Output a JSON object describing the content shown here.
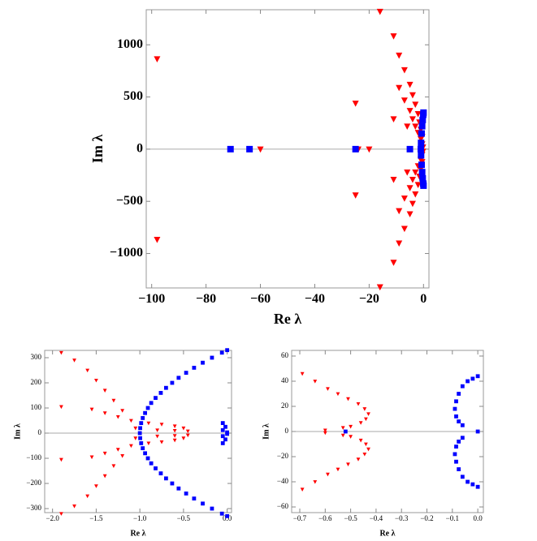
{
  "chart_data": [
    {
      "type": "scatter",
      "x_label": "Re λ",
      "y_label": "Im λ",
      "zero_line": true,
      "xlim": [
        -102,
        2
      ],
      "ylim": [
        -1330,
        1336
      ],
      "xticks": [
        {
          "value": -100,
          "label": "−100"
        },
        {
          "value": -80,
          "label": "−80"
        },
        {
          "value": -60,
          "label": "−60"
        },
        {
          "value": -40,
          "label": "−40"
        },
        {
          "value": -20,
          "label": "−20"
        },
        0
      ],
      "yticks": [
        1000,
        500,
        0,
        {
          "value": -500,
          "label": "−500"
        },
        {
          "value": -1000,
          "label": "−1000"
        }
      ],
      "series": [
        {
          "color": "#ff0000",
          "marker": "triangle-down",
          "x": [
            -98,
            -98,
            -60,
            -25,
            -25,
            -24,
            -20,
            -16,
            -16,
            -11,
            -11,
            -11,
            -11,
            -9,
            -9,
            -9,
            -9,
            -7,
            -7,
            -7,
            -7,
            -6,
            -6,
            -5,
            -5,
            -5,
            -5,
            -4,
            -4,
            -4,
            -4,
            -3,
            -3,
            -3,
            -3,
            -2,
            -2,
            -2,
            -2,
            -1.5,
            -1.5,
            -1,
            -1,
            -1,
            -1,
            -0.5,
            -0.5,
            -0.5,
            -0.5,
            -0.2,
            -0.2
          ],
          "values": [
            865,
            -865,
            0,
            440,
            -440,
            0,
            0,
            1320,
            -1320,
            1085,
            -1085,
            290,
            -290,
            900,
            -900,
            590,
            -590,
            760,
            -760,
            470,
            -470,
            220,
            -220,
            620,
            -620,
            370,
            -370,
            520,
            -520,
            290,
            -290,
            430,
            -430,
            220,
            -220,
            340,
            -340,
            160,
            -160,
            260,
            -260,
            190,
            -190,
            100,
            -100,
            120,
            -120,
            50,
            -50,
            20,
            -20
          ]
        },
        {
          "color": "#0000ff",
          "marker": "square",
          "x": [
            -71,
            -64,
            -25,
            -5,
            -1,
            -0.9,
            -0.9,
            -0.7,
            -0.7,
            -0.5,
            -0.5,
            -0.3,
            -0.3,
            -0.1,
            -0.1,
            0,
            0
          ],
          "values": [
            0,
            0,
            0,
            0,
            0,
            60,
            -60,
            150,
            -150,
            220,
            -220,
            280,
            -280,
            330,
            -330,
            350,
            -350
          ]
        }
      ]
    },
    {
      "type": "scatter",
      "x_label": "Re λ",
      "y_label": "Im λ",
      "zero_line": true,
      "xlim": [
        -2.09,
        0.05
      ],
      "ylim": [
        -316,
        329
      ],
      "xticks": [
        {
          "value": -2,
          "label": "−2.0"
        },
        {
          "value": -1.5,
          "label": "−1.5"
        },
        {
          "value": -1,
          "label": "−1.0"
        },
        {
          "value": -0.5,
          "label": "−0.5"
        },
        {
          "value": 0,
          "label": "0.0"
        }
      ],
      "yticks": [
        300,
        200,
        100,
        0,
        {
          "value": -100,
          "label": "−100"
        },
        {
          "value": -200,
          "label": "−200"
        },
        {
          "value": -300,
          "label": "−300"
        }
      ],
      "series": [
        {
          "color": "#ff0000",
          "marker": "triangle-down",
          "x": [
            -1.9,
            -1.9,
            -1.75,
            -1.75,
            -1.6,
            -1.6,
            -1.5,
            -1.5,
            -1.4,
            -1.4,
            -1.3,
            -1.3,
            -1.2,
            -1.2,
            -1.1,
            -1.1,
            -1.05,
            -1.05,
            -1.9,
            -1.9,
            -1.55,
            -1.55,
            -1.4,
            -1.4,
            -1.25,
            -1.25,
            -0.9,
            -0.9,
            -0.75,
            -0.75,
            -0.6,
            -0.6,
            -0.5,
            -0.5,
            -0.45,
            -0.45,
            -0.6,
            -0.6,
            -0.8,
            -0.8
          ],
          "values": [
            320,
            -320,
            290,
            -290,
            250,
            -250,
            210,
            -210,
            170,
            -170,
            130,
            -130,
            90,
            -90,
            50,
            -50,
            20,
            -20,
            105,
            -105,
            95,
            -95,
            80,
            -80,
            65,
            -65,
            40,
            -40,
            35,
            -35,
            28,
            -28,
            20,
            -20,
            8,
            -8,
            10,
            -10,
            12,
            -12
          ]
        },
        {
          "color": "#0000ff",
          "marker": "square",
          "x": [
            -1,
            -0.996,
            -0.996,
            -0.985,
            -0.985,
            -0.967,
            -0.967,
            -0.94,
            -0.94,
            -0.908,
            -0.908,
            -0.87,
            -0.87,
            -0.82,
            -0.82,
            -0.76,
            -0.76,
            -0.7,
            -0.7,
            -0.63,
            -0.63,
            -0.556,
            -0.556,
            -0.47,
            -0.47,
            -0.379,
            -0.379,
            -0.28,
            -0.28,
            -0.174,
            -0.174,
            -0.06,
            -0.06,
            0,
            0,
            -0.05,
            -0.05,
            -0.02,
            -0.02,
            -0.05,
            -0.05,
            0,
            0
          ],
          "values": [
            0,
            20,
            -20,
            40,
            -40,
            60,
            -60,
            80,
            -80,
            100,
            -100,
            120,
            -120,
            140,
            -140,
            160,
            -160,
            180,
            -180,
            200,
            -200,
            220,
            -220,
            240,
            -240,
            260,
            -260,
            280,
            -280,
            300,
            -300,
            320,
            -320,
            330,
            -330,
            40,
            -40,
            25,
            -25,
            12,
            -12,
            3,
            -3
          ]
        }
      ]
    },
    {
      "type": "scatter",
      "x_label": "Re λ",
      "y_label": "Im λ",
      "zero_line": true,
      "xlim": [
        -0.732,
        0.022
      ],
      "ylim": [
        -64.5,
        64.5
      ],
      "xticks": [
        {
          "value": -0.7,
          "label": "−0.7"
        },
        {
          "value": -0.6,
          "label": "−0.6"
        },
        {
          "value": -0.5,
          "label": "−0.5"
        },
        {
          "value": -0.4,
          "label": "−0.4"
        },
        {
          "value": -0.3,
          "label": "−0.3"
        },
        {
          "value": -0.2,
          "label": "−0.2"
        },
        {
          "value": -0.1,
          "label": "−0.1"
        },
        {
          "value": 0,
          "label": "0.0"
        }
      ],
      "yticks": [
        60,
        40,
        20,
        0,
        {
          "value": -20,
          "label": "−20"
        },
        {
          "value": -40,
          "label": "−40"
        },
        {
          "value": -60,
          "label": "−60"
        }
      ],
      "series": [
        {
          "color": "#ff0000",
          "marker": "triangle-down",
          "x": [
            -0.69,
            -0.69,
            -0.64,
            -0.64,
            -0.59,
            -0.59,
            -0.55,
            -0.55,
            -0.51,
            -0.51,
            -0.47,
            -0.47,
            -0.445,
            -0.445,
            -0.43,
            -0.43,
            -0.44,
            -0.44,
            -0.46,
            -0.46,
            -0.5,
            -0.5,
            -0.6,
            -0.6,
            -0.53,
            -0.53
          ],
          "values": [
            46,
            -46,
            40,
            -40,
            34,
            -34,
            30,
            -30,
            26,
            -26,
            22,
            -22,
            18,
            -18,
            14,
            -14,
            10,
            -10,
            7,
            -7,
            4,
            -4,
            1,
            -1,
            3,
            -3
          ]
        },
        {
          "color": "#0000ff",
          "marker": "square",
          "x": [
            0,
            0,
            -0.02,
            -0.02,
            -0.04,
            -0.04,
            -0.06,
            -0.06,
            -0.075,
            -0.075,
            -0.085,
            -0.085,
            -0.09,
            -0.09,
            -0.085,
            -0.085,
            -0.075,
            -0.075,
            -0.06,
            -0.06,
            0,
            -0.52
          ],
          "values": [
            44,
            -44,
            42,
            -42,
            40,
            -40,
            36,
            -36,
            30,
            -30,
            24,
            -24,
            18,
            -18,
            12,
            -12,
            8,
            -8,
            5,
            -5,
            0,
            0
          ]
        }
      ]
    }
  ]
}
